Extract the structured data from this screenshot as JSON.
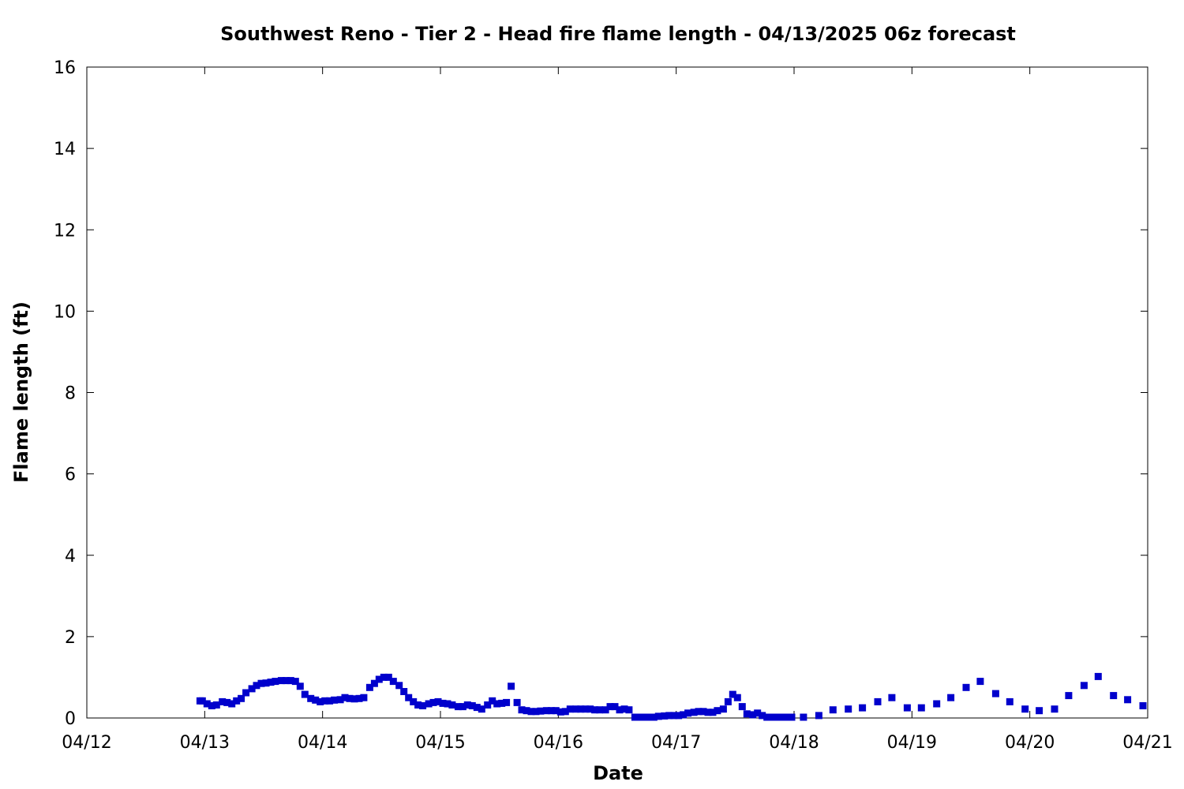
{
  "chart_data": {
    "type": "scatter",
    "title": "Southwest Reno - Tier 2 - Head fire flame length - 04/13/2025 06z forecast",
    "xlabel": "Date",
    "ylabel": "Flame length (ft)",
    "xlim": [
      0,
      9
    ],
    "ylim": [
      0,
      16
    ],
    "x_ticks": [
      {
        "value": 0,
        "label": "04/12"
      },
      {
        "value": 1,
        "label": "04/13"
      },
      {
        "value": 2,
        "label": "04/14"
      },
      {
        "value": 3,
        "label": "04/15"
      },
      {
        "value": 4,
        "label": "04/16"
      },
      {
        "value": 5,
        "label": "04/17"
      },
      {
        "value": 6,
        "label": "04/18"
      },
      {
        "value": 7,
        "label": "04/19"
      },
      {
        "value": 8,
        "label": "04/20"
      },
      {
        "value": 9,
        "label": "04/21"
      }
    ],
    "y_ticks": [
      0,
      2,
      4,
      6,
      8,
      10,
      12,
      14,
      16
    ],
    "grid": false,
    "marker_color": "#0000cc",
    "series": [
      {
        "x": [
          0.96,
          0.98,
          1.02,
          1.06,
          1.1,
          1.15,
          1.19,
          1.23,
          1.27,
          1.31,
          1.35,
          1.4,
          1.44,
          1.48,
          1.52,
          1.56,
          1.6,
          1.65,
          1.69,
          1.73,
          1.77,
          1.81,
          1.85,
          1.9,
          1.94,
          1.98,
          2.02,
          2.06,
          2.1,
          2.15,
          2.19,
          2.23,
          2.27,
          2.31,
          2.35,
          2.4,
          2.44,
          2.48,
          2.52,
          2.56,
          2.6,
          2.65,
          2.69,
          2.73,
          2.77,
          2.81,
          2.85,
          2.9,
          2.94,
          2.98,
          3.02,
          3.06,
          3.1,
          3.15,
          3.19,
          3.23,
          3.27,
          3.31,
          3.35,
          3.4,
          3.44,
          3.48,
          3.52,
          3.56,
          3.6,
          3.65,
          3.69,
          3.73,
          3.77,
          3.81,
          3.85,
          3.9,
          3.94,
          3.98,
          4.02,
          4.06,
          4.1,
          4.15,
          4.19,
          4.23,
          4.27,
          4.31,
          4.35,
          4.4,
          4.44,
          4.48,
          4.52,
          4.56,
          4.6,
          4.65,
          4.69,
          4.73,
          4.77,
          4.81,
          4.85,
          4.9,
          4.94,
          4.98,
          5.02,
          5.06,
          5.1,
          5.15,
          5.19,
          5.23,
          5.27,
          5.31,
          5.35,
          5.4,
          5.44,
          5.48,
          5.52,
          5.56,
          5.6,
          5.65,
          5.69,
          5.73,
          5.77,
          5.81,
          5.85,
          5.9,
          5.94,
          5.98,
          6.08,
          6.21,
          6.33,
          6.46,
          6.58,
          6.71,
          6.83,
          6.96,
          7.08,
          7.21,
          7.33,
          7.46,
          7.58,
          7.71,
          7.83,
          7.96,
          8.08,
          8.21,
          8.33,
          8.46,
          8.58,
          8.71,
          8.83,
          8.96
        ],
        "y": [
          0.42,
          0.42,
          0.35,
          0.3,
          0.32,
          0.4,
          0.38,
          0.35,
          0.42,
          0.48,
          0.62,
          0.72,
          0.8,
          0.85,
          0.86,
          0.88,
          0.9,
          0.92,
          0.92,
          0.92,
          0.9,
          0.78,
          0.58,
          0.48,
          0.44,
          0.4,
          0.42,
          0.42,
          0.44,
          0.45,
          0.5,
          0.48,
          0.47,
          0.48,
          0.5,
          0.75,
          0.85,
          0.95,
          1.0,
          1.0,
          0.9,
          0.8,
          0.65,
          0.5,
          0.4,
          0.32,
          0.3,
          0.35,
          0.38,
          0.4,
          0.36,
          0.35,
          0.32,
          0.28,
          0.28,
          0.32,
          0.3,
          0.26,
          0.22,
          0.32,
          0.42,
          0.35,
          0.36,
          0.38,
          0.78,
          0.38,
          0.2,
          0.18,
          0.16,
          0.16,
          0.17,
          0.18,
          0.18,
          0.18,
          0.15,
          0.16,
          0.22,
          0.22,
          0.22,
          0.22,
          0.22,
          0.2,
          0.2,
          0.2,
          0.28,
          0.28,
          0.2,
          0.22,
          0.2,
          0.02,
          0.02,
          0.02,
          0.02,
          0.02,
          0.04,
          0.05,
          0.06,
          0.06,
          0.06,
          0.08,
          0.12,
          0.14,
          0.16,
          0.16,
          0.14,
          0.14,
          0.18,
          0.22,
          0.4,
          0.58,
          0.5,
          0.28,
          0.1,
          0.08,
          0.12,
          0.06,
          0.02,
          0.02,
          0.02,
          0.02,
          0.02,
          0.02,
          0.02,
          0.06,
          0.2,
          0.22,
          0.25,
          0.4,
          0.5,
          0.25,
          0.25,
          0.35,
          0.5,
          0.75,
          0.9,
          0.6,
          0.4,
          0.22,
          0.18,
          0.22,
          0.55,
          0.8,
          1.02,
          0.55,
          0.45,
          0.3
        ]
      }
    ]
  }
}
